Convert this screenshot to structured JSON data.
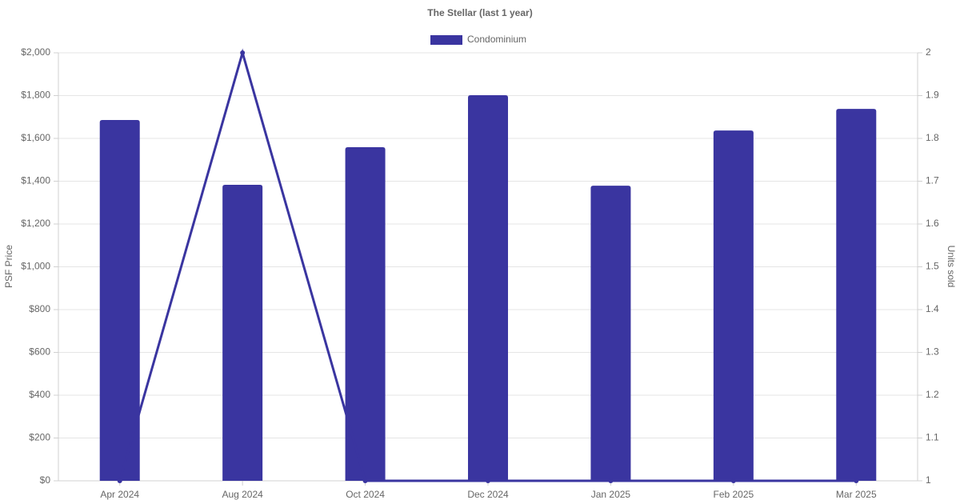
{
  "chart_data": {
    "type": "bar-line",
    "title": "The Stellar (last 1 year)",
    "y_label": "PSF Price",
    "y2_label": "Units sold",
    "categories": [
      "Apr 2024",
      "Aug 2024",
      "Oct 2024",
      "Dec 2024",
      "Jan 2025",
      "Feb 2025",
      "Mar 2025"
    ],
    "series": [
      {
        "name": "Condominium",
        "type": "bar",
        "color": "#3a35a0",
        "values": [
          1686,
          1383,
          1559,
          1802,
          1379,
          1637,
          1738
        ]
      },
      {
        "type": "line",
        "axis": "y2",
        "color": "#3a35a0",
        "values": [
          1,
          2,
          1,
          1,
          1,
          1,
          1
        ]
      }
    ],
    "ylim": [
      0,
      2000
    ],
    "yticks": [
      {
        "value": 0,
        "label": "$0"
      },
      {
        "value": 200,
        "label": "$200"
      },
      {
        "value": 400,
        "label": "$400"
      },
      {
        "value": 600,
        "label": "$600"
      },
      {
        "value": 800,
        "label": "$800"
      },
      {
        "value": 1000,
        "label": "$1,000"
      },
      {
        "value": 1200,
        "label": "$1,200"
      },
      {
        "value": 1400,
        "label": "$1,400"
      },
      {
        "value": 1600,
        "label": "$1,600"
      },
      {
        "value": 1800,
        "label": "$1,800"
      },
      {
        "value": 2000,
        "label": "$2,000"
      }
    ],
    "y2lim": [
      1,
      2
    ],
    "y2ticks": [
      1,
      1.1,
      1.2,
      1.3,
      1.4,
      1.5,
      1.6,
      1.7,
      1.8,
      1.9,
      2
    ],
    "grid": true,
    "legend": "top"
  }
}
